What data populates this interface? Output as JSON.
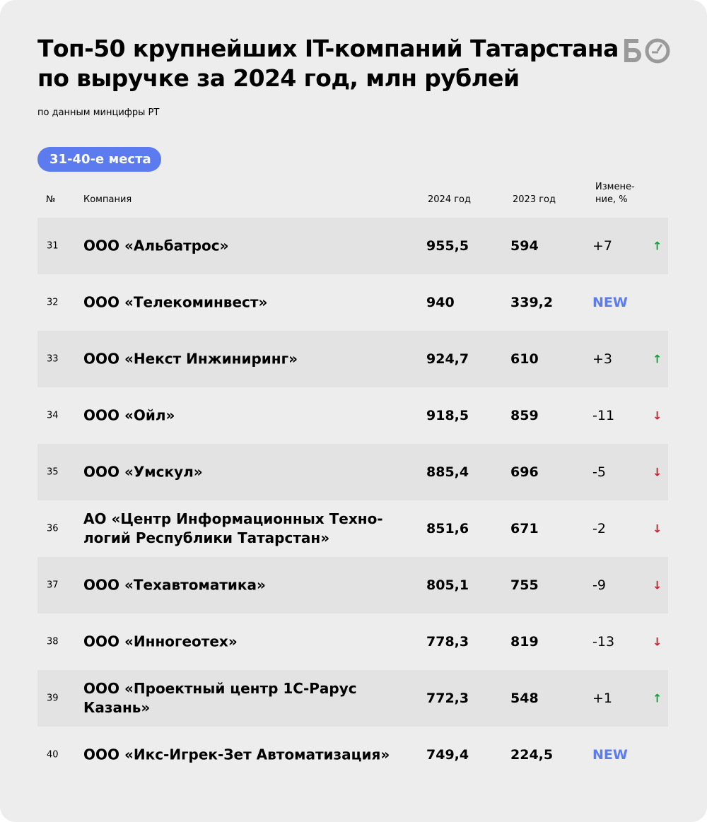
{
  "title": "Топ-50 крупнейших IT-компаний Татарстана по выручке за 2024 год, млн рублей",
  "subtitle": "по данным минцифры РТ",
  "logo": "БО",
  "range_badge": "31-40-е места",
  "headers": {
    "num": "№",
    "company": "Компания",
    "y2024": "2024 год",
    "y2023": "2023 год",
    "change": "Измене-ние, %"
  },
  "colors": {
    "accent": "#5b7bef",
    "up": "#1a9a3a",
    "down": "#c0262b"
  },
  "rows": [
    {
      "num": "31",
      "company": "ООО «Альбатрос»",
      "y2024": "955,5",
      "y2023": "594",
      "change": "+7",
      "arrow": "↑",
      "dir": "up"
    },
    {
      "num": "32",
      "company": "ООО «Телекоминвест»",
      "y2024": "940",
      "y2023": "339,2",
      "change": "NEW",
      "arrow": "",
      "dir": "new"
    },
    {
      "num": "33",
      "company": "ООО «Некст Инжиниринг»",
      "y2024": "924,7",
      "y2023": "610",
      "change": "+3",
      "arrow": "↑",
      "dir": "up"
    },
    {
      "num": "34",
      "company": "ООО «Ойл»",
      "y2024": "918,5",
      "y2023": "859",
      "change": "-11",
      "arrow": "↓",
      "dir": "down"
    },
    {
      "num": "35",
      "company": "ООО «Умскул»",
      "y2024": "885,4",
      "y2023": "696",
      "change": "-5",
      "arrow": "↓",
      "dir": "down"
    },
    {
      "num": "36",
      "company": "АО «Центр Информационных Техно-логий Республики Татарстан»",
      "y2024": "851,6",
      "y2023": "671",
      "change": "-2",
      "arrow": "↓",
      "dir": "down"
    },
    {
      "num": "37",
      "company": "ООО «Техавтоматика»",
      "y2024": "805,1",
      "y2023": "755",
      "change": "-9",
      "arrow": "↓",
      "dir": "down"
    },
    {
      "num": "38",
      "company": "ООО «Инногеотех»",
      "y2024": "778,3",
      "y2023": "819",
      "change": "-13",
      "arrow": "↓",
      "dir": "down"
    },
    {
      "num": "39",
      "company": "ООО «Проектный центр 1С-Рарус Казань»",
      "y2024": "772,3",
      "y2023": "548",
      "change": "+1",
      "arrow": "↑",
      "dir": "up"
    },
    {
      "num": "40",
      "company": "ООО «Икс-Игрек-Зет Автоматизация»",
      "y2024": "749,4",
      "y2023": "224,5",
      "change": "NEW",
      "arrow": "",
      "dir": "new"
    }
  ]
}
